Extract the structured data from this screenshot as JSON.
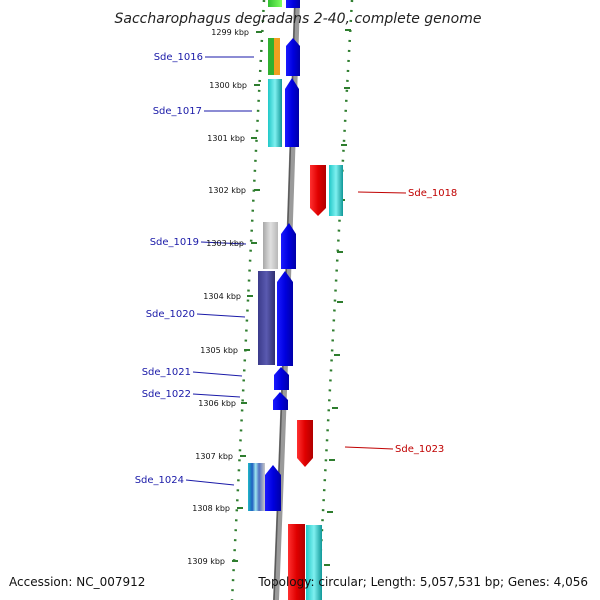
{
  "title": "Saccharophagus degradans 2-40, complete genome",
  "accession": "Accession: NC_007912",
  "topology": "Topology: circular; Length: 5,057,531 bp; Genes: 4,056",
  "colors": {
    "forward_cds": "#0000ee",
    "reverse_cds": "#ee0000",
    "backbone": "#888888",
    "dots": "#2e7d2e",
    "left_label": "#1a1aa8",
    "right_label": "#c00000"
  },
  "ticks": [
    "1299 kbp",
    "1300 kbp",
    "1301 kbp",
    "1302 kbp",
    "1303 kbp",
    "1304 kbp",
    "1305 kbp",
    "1306 kbp",
    "1307 kbp",
    "1308 kbp",
    "1309 kbp"
  ],
  "genes_left": [
    "Sde_1016",
    "Sde_1017",
    "Sde_1019",
    "Sde_1020",
    "Sde_1021",
    "Sde_1022",
    "Sde_1024"
  ],
  "genes_right": [
    "Sde_1018",
    "Sde_1023"
  ]
}
